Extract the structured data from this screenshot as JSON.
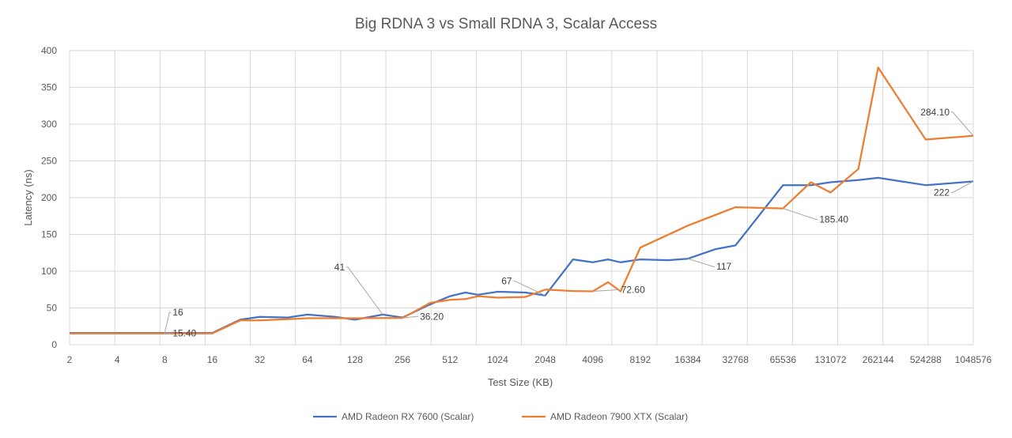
{
  "chart_data": {
    "type": "line",
    "title": "Big RDNA 3 vs Small RDNA 3, Scalar Access",
    "xlabel": "Test Size (KB)",
    "ylabel": "Latency (ns)",
    "ylim": [
      0,
      400
    ],
    "yticks": [
      0,
      50,
      100,
      150,
      200,
      250,
      300,
      350,
      400
    ],
    "x_scale": "log2",
    "xlim": [
      2,
      1048576
    ],
    "xticks": [
      "2",
      "4",
      "8",
      "16",
      "32",
      "64",
      "128",
      "256",
      "512",
      "1024",
      "2048",
      "4096",
      "8192",
      "16384",
      "32768",
      "65536",
      "131072",
      "262144",
      "524288",
      "1048576"
    ],
    "grid": true,
    "legend_position": "bottom",
    "series": [
      {
        "name": "AMD Radeon RX 7600 (Scalar)",
        "color": "#4472c4",
        "points": [
          [
            2,
            16
          ],
          [
            4,
            16
          ],
          [
            8,
            16
          ],
          [
            16,
            16
          ],
          [
            24,
            34
          ],
          [
            32,
            38
          ],
          [
            48,
            37
          ],
          [
            64,
            41
          ],
          [
            96,
            38
          ],
          [
            128,
            34
          ],
          [
            192,
            41
          ],
          [
            256,
            37
          ],
          [
            384,
            55
          ],
          [
            512,
            66
          ],
          [
            640,
            71
          ],
          [
            768,
            68
          ],
          [
            1024,
            72
          ],
          [
            1536,
            71
          ],
          [
            2048,
            67
          ],
          [
            3072,
            116
          ],
          [
            4096,
            112
          ],
          [
            5120,
            116
          ],
          [
            6144,
            112
          ],
          [
            8192,
            116
          ],
          [
            12288,
            115
          ],
          [
            16384,
            117
          ],
          [
            24576,
            130
          ],
          [
            32768,
            135
          ],
          [
            65536,
            217
          ],
          [
            98304,
            217
          ],
          [
            131072,
            221
          ],
          [
            196608,
            224
          ],
          [
            262144,
            227
          ],
          [
            524288,
            217
          ],
          [
            1048576,
            222
          ]
        ]
      },
      {
        "name": "AMD Radeon 7900 XTX (Scalar)",
        "color": "#ed7d31",
        "points": [
          [
            2,
            15.4
          ],
          [
            4,
            15.4
          ],
          [
            8,
            15.4
          ],
          [
            16,
            15.4
          ],
          [
            24,
            33
          ],
          [
            32,
            33
          ],
          [
            64,
            36
          ],
          [
            96,
            36
          ],
          [
            128,
            36
          ],
          [
            192,
            36.2
          ],
          [
            256,
            36.2
          ],
          [
            384,
            57
          ],
          [
            512,
            61
          ],
          [
            640,
            62
          ],
          [
            768,
            66
          ],
          [
            1024,
            64
          ],
          [
            1536,
            65
          ],
          [
            2048,
            75
          ],
          [
            3072,
            73
          ],
          [
            4096,
            72.6
          ],
          [
            5120,
            85
          ],
          [
            6144,
            72.6
          ],
          [
            8192,
            132
          ],
          [
            16384,
            162
          ],
          [
            32768,
            187
          ],
          [
            65536,
            185.4
          ],
          [
            98304,
            221
          ],
          [
            131072,
            207
          ],
          [
            196608,
            239
          ],
          [
            262144,
            377
          ],
          [
            524288,
            279
          ],
          [
            1048576,
            284.1
          ]
        ]
      }
    ],
    "data_labels": [
      {
        "text": "16",
        "x": 8,
        "y": 16,
        "series": 0
      },
      {
        "text": "15.40",
        "x": 8,
        "y": 15.4,
        "series": 1
      },
      {
        "text": "41",
        "x": 192,
        "y": 41,
        "series": 0
      },
      {
        "text": "36.20",
        "x": 256,
        "y": 36.2,
        "series": 1
      },
      {
        "text": "67",
        "x": 2048,
        "y": 67,
        "series": 0
      },
      {
        "text": "72.60",
        "x": 4096,
        "y": 72.6,
        "series": 1
      },
      {
        "text": "117",
        "x": 16384,
        "y": 117,
        "series": 0
      },
      {
        "text": "185.40",
        "x": 65536,
        "y": 185.4,
        "series": 1
      },
      {
        "text": "284.10",
        "x": 1048576,
        "y": 284.1,
        "series": 1
      },
      {
        "text": "222",
        "x": 1048576,
        "y": 222,
        "series": 0
      }
    ]
  }
}
